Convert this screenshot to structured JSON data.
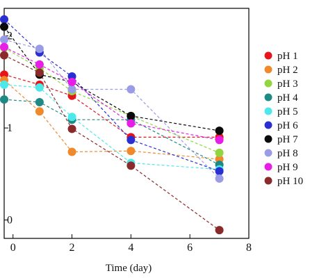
{
  "chart_data": {
    "type": "line",
    "xlabel": "Time (day)",
    "ylabel": "",
    "xlim": [
      -0.3,
      8
    ],
    "ylim": [
      -0.2,
      2.3
    ],
    "x_ticks": [
      0,
      2,
      4,
      6,
      8
    ],
    "y_ticks": [
      {
        "value": 0,
        "label": "0"
      },
      {
        "value": 1,
        "label": "1"
      },
      {
        "value": 2,
        "label": "2"
      }
    ],
    "line_style": "dashed",
    "legend_position": "right",
    "grid": false,
    "x": [
      -0.3,
      0.9,
      2,
      4,
      7
    ],
    "series": [
      {
        "name": "pH 1",
        "color": "#e8141c",
        "values": [
          1.58,
          1.47,
          1.35,
          0.9,
          0.9
        ]
      },
      {
        "name": "pH 2",
        "color": "#f0882c",
        "values": [
          1.52,
          1.18,
          0.74,
          0.75,
          0.66
        ]
      },
      {
        "name": "pH 3",
        "color": "#90d63c",
        "values": [
          1.87,
          1.65,
          1.4,
          1.13,
          0.73
        ]
      },
      {
        "name": "pH 4",
        "color": "#1d8a85",
        "values": [
          1.31,
          1.28,
          1.09,
          1.09,
          0.6
        ]
      },
      {
        "name": "pH 5",
        "color": "#4de8ea",
        "values": [
          1.47,
          1.44,
          1.12,
          0.62,
          0.55
        ]
      },
      {
        "name": "pH 6",
        "color": "#2a2fd2",
        "values": [
          2.18,
          1.82,
          1.56,
          0.87,
          0.53
        ]
      },
      {
        "name": "pH 7",
        "color": "#0a0a0a",
        "values": [
          2.1,
          1.58,
          1.5,
          1.13,
          0.97
        ]
      },
      {
        "name": "pH 8",
        "color": "#9b9ce6",
        "values": [
          1.96,
          1.86,
          1.42,
          1.42,
          0.45
        ]
      },
      {
        "name": "pH 9",
        "color": "#e81ee8",
        "values": [
          1.88,
          1.69,
          1.5,
          1.05,
          0.87
        ]
      },
      {
        "name": "pH 10",
        "color": "#8b2a2a",
        "values": [
          1.79,
          1.6,
          0.99,
          0.59,
          -0.11
        ]
      }
    ]
  }
}
